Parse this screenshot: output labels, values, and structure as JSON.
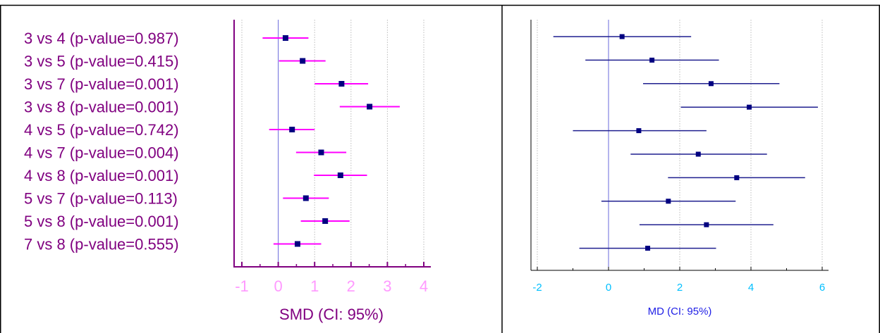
{
  "colors": {
    "border": "#000000",
    "left_axis": "#800080",
    "left_label_text": "#800080",
    "left_tick_label": "#FF99FF",
    "left_ci": "#FF00FF",
    "left_marker": "#000080",
    "right_axis": "#000000",
    "right_tick_label": "#00BFFF",
    "right_axis_label": "#1E1EE6",
    "right_ci": "#1F1F8F",
    "right_marker": "#000080",
    "zero_line": "#6A6ADB",
    "grid": "#BBBBBB"
  },
  "chart_data": [
    {
      "type": "forest",
      "xlabel": "SMD (CI: 95%)",
      "xlim": [
        -1.2,
        4.2
      ],
      "xticks": [
        -1,
        0,
        1,
        2,
        3,
        4
      ],
      "xtick_labels": [
        "-1",
        "0",
        "1",
        "2",
        "3",
        "4"
      ],
      "grid": true,
      "categories": [
        "3 vs 4 (p-value=0.987)",
        "3 vs 5 (p-value=0.415)",
        "3 vs 7 (p-value=0.001)",
        "3 vs 8 (p-value=0.001)",
        "4 vs 5 (p-value=0.742)",
        "4 vs 7 (p-value=0.004)",
        "4 vs 8 (p-value=0.001)",
        "5 vs 7 (p-value=0.113)",
        "5 vs 8 (p-value=0.001)",
        "7 vs 8 (p-value=0.555)"
      ],
      "estimates": [
        0.2,
        0.67,
        1.74,
        2.51,
        0.38,
        1.18,
        1.71,
        0.76,
        1.29,
        0.53
      ],
      "ci_low": [
        -0.43,
        0.02,
        1.0,
        1.69,
        -0.25,
        0.49,
        0.98,
        0.13,
        0.62,
        -0.13
      ],
      "ci_high": [
        0.83,
        1.3,
        2.47,
        3.34,
        1.0,
        1.87,
        2.44,
        1.39,
        1.96,
        1.18
      ]
    },
    {
      "type": "forest",
      "xlabel": "MD (CI: 95%)",
      "xlim": [
        -2.3,
        6.3
      ],
      "xticks": [
        -2,
        0,
        2,
        4,
        6
      ],
      "xtick_labels": [
        "-2",
        "0",
        "2",
        "4",
        "6"
      ],
      "grid": true,
      "estimates": [
        0.38,
        1.22,
        2.88,
        3.95,
        0.85,
        2.52,
        3.6,
        1.68,
        2.75,
        1.1
      ],
      "ci_low": [
        -1.55,
        -0.65,
        0.97,
        2.03,
        -1.0,
        0.62,
        1.67,
        -0.2,
        0.87,
        -0.82
      ],
      "ci_high": [
        2.32,
        3.1,
        4.8,
        5.88,
        2.75,
        4.45,
        5.52,
        3.57,
        4.63,
        3.02
      ]
    }
  ]
}
